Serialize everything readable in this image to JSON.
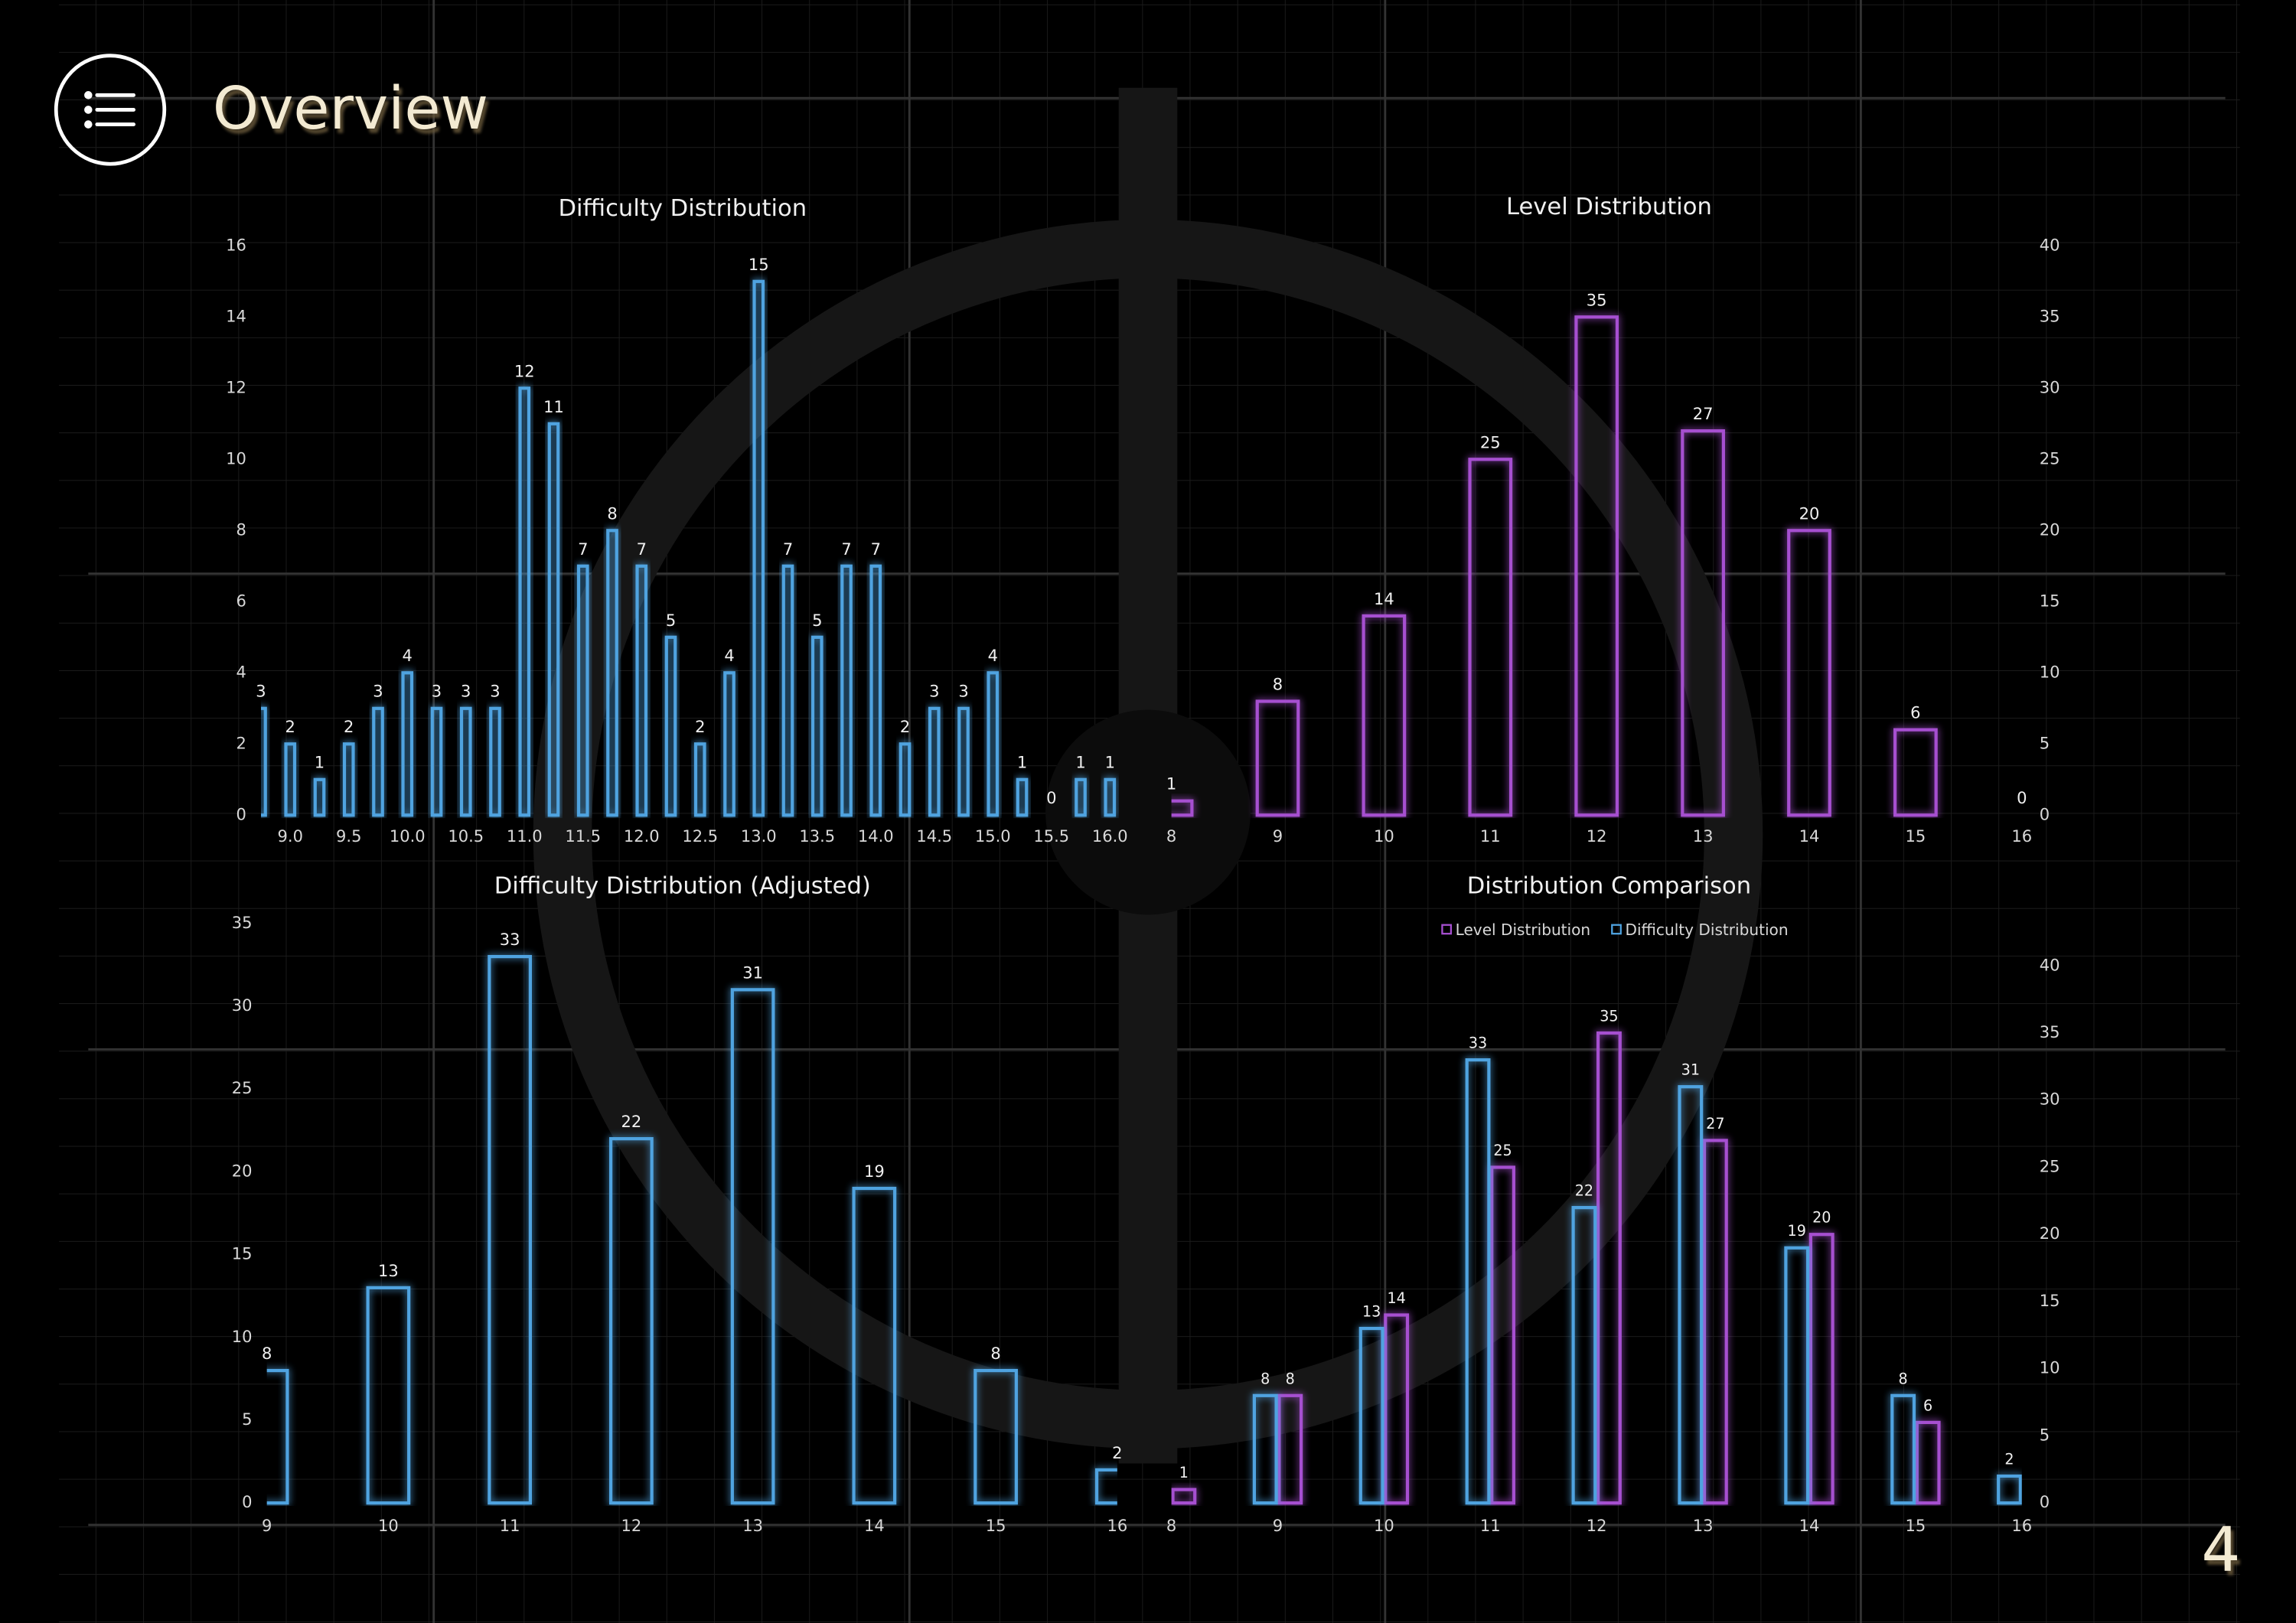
{
  "header": {
    "title": "Overview"
  },
  "page_number": "4",
  "chart_data": [
    {
      "type": "bar",
      "title": "Difficulty Distribution",
      "x": [
        8.75,
        9.0,
        9.25,
        9.5,
        9.75,
        10.0,
        10.25,
        10.5,
        10.75,
        11.0,
        11.25,
        11.5,
        11.75,
        12.0,
        12.25,
        12.5,
        12.75,
        13.0,
        13.25,
        13.5,
        13.75,
        14.0,
        14.25,
        14.5,
        14.75,
        15.0,
        15.25,
        15.5,
        15.75,
        16.0
      ],
      "values": [
        3,
        2,
        1,
        2,
        3,
        4,
        3,
        3,
        3,
        12,
        11,
        7,
        8,
        7,
        5,
        2,
        4,
        15,
        7,
        5,
        7,
        7,
        2,
        3,
        3,
        4,
        1,
        0,
        1,
        1
      ],
      "color": "#4fa3e0",
      "xlim": [
        8.75,
        16.1
      ],
      "xticks": [
        {
          "value": 9,
          "label": "9.0"
        },
        9.5,
        {
          "value": 10,
          "label": "10.0"
        },
        10.5,
        {
          "value": 11,
          "label": "11.0"
        },
        11.5,
        {
          "value": 12,
          "label": "12.0"
        },
        12.5,
        {
          "value": 13,
          "label": "13.0"
        },
        13.5,
        {
          "value": 14,
          "label": "14.0"
        },
        14.5,
        {
          "value": 15,
          "label": "15.0"
        },
        15.5,
        {
          "value": 16,
          "label": "16.0"
        }
      ],
      "ylim": [
        0,
        16
      ],
      "yticks": [
        0,
        2,
        4,
        6,
        8,
        10,
        12,
        14,
        16
      ],
      "y_axis_side": "left"
    },
    {
      "type": "bar",
      "title": "Level Distribution",
      "categories": [
        "8",
        "9",
        "10",
        "11",
        "12",
        "13",
        "14",
        "15",
        "16"
      ],
      "values": [
        1,
        8,
        14,
        25,
        35,
        27,
        20,
        6,
        0
      ],
      "color": "#a64fd0",
      "ylim": [
        0,
        40
      ],
      "yticks": [
        0,
        5,
        10,
        15,
        20,
        25,
        30,
        35,
        40
      ],
      "y_axis_side": "right"
    },
    {
      "type": "bar",
      "title": "Difficulty Distribution (Adjusted)",
      "categories": [
        "9",
        "10",
        "11",
        "12",
        "13",
        "14",
        "15",
        "16"
      ],
      "values": [
        8,
        13,
        33,
        22,
        31,
        19,
        8,
        2
      ],
      "color": "#4fa3e0",
      "ylim": [
        0,
        35
      ],
      "yticks": [
        0,
        5,
        10,
        15,
        20,
        25,
        30,
        35
      ],
      "y_axis_side": "left"
    },
    {
      "type": "grouped_bar",
      "title": "Distribution Comparison",
      "categories": [
        "8",
        "9",
        "10",
        "11",
        "12",
        "13",
        "14",
        "15",
        "16"
      ],
      "series": [
        {
          "name": "Level Distribution",
          "color": "#a64fd0",
          "values": [
            1,
            8,
            14,
            25,
            35,
            27,
            20,
            6,
            null
          ]
        },
        {
          "name": "Difficulty Distribution",
          "color": "#4fa3e0",
          "values": [
            null,
            8,
            13,
            33,
            22,
            31,
            19,
            8,
            2
          ]
        }
      ],
      "ylim": [
        0,
        40
      ],
      "yticks": [
        0,
        5,
        10,
        15,
        20,
        25,
        30,
        35,
        40
      ],
      "y_axis_side": "right",
      "legend": "top"
    }
  ]
}
